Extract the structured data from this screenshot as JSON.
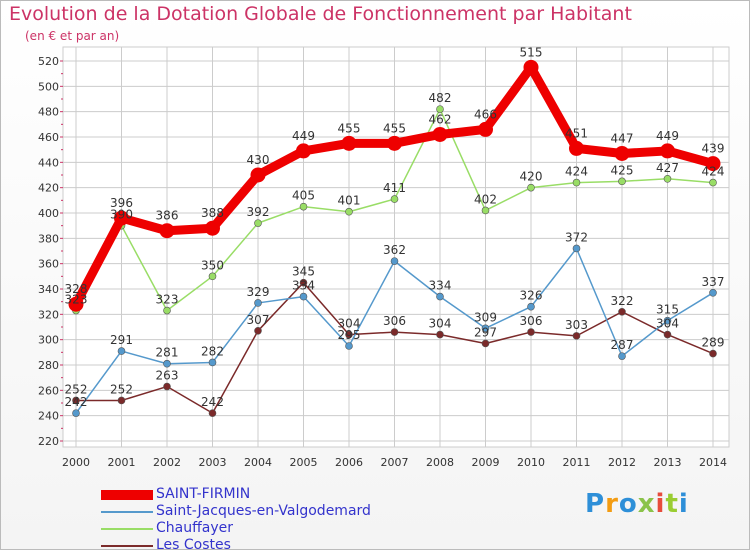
{
  "header": {
    "title": "Evolution de la Dotation Globale de Fonctionnement par Habitant",
    "subtitle": "(en € et par an)"
  },
  "brand": {
    "text": "Proxiti",
    "colors": [
      "#2e8fd8",
      "#f39c12",
      "#2e8fd8",
      "#8bc34a",
      "#e74c3c",
      "#9acd32",
      "#2e8fd8"
    ]
  },
  "chart_data": {
    "type": "line",
    "categories": [
      "2000",
      "2001",
      "2002",
      "2003",
      "2004",
      "2005",
      "2006",
      "2007",
      "2008",
      "2009",
      "2010",
      "2011",
      "2012",
      "2013",
      "2014"
    ],
    "ylim": [
      220,
      520
    ],
    "yticks": [
      "220",
      "240",
      "260",
      "280",
      "300",
      "320",
      "340",
      "360",
      "380",
      "400",
      "420",
      "440",
      "460",
      "480",
      "500",
      "520"
    ],
    "grid": true,
    "legend_position": "bottom-left",
    "series": [
      {
        "name": "Les Costes",
        "color": "#7b2a2a",
        "values": [
          252,
          252,
          263,
          242,
          307,
          345,
          304,
          306,
          304,
          297,
          306,
          303,
          322,
          304,
          289
        ],
        "labels": [
          "252",
          "252",
          "263",
          "242",
          "307",
          "345",
          "304",
          "306",
          "304",
          "297",
          "306",
          "303",
          "322",
          "304",
          "289"
        ]
      },
      {
        "name": "Chauffayer",
        "color": "#99dd66",
        "values": [
          323,
          390,
          323,
          350,
          392,
          405,
          401,
          411,
          482,
          402,
          420,
          424,
          425,
          427,
          424
        ],
        "labels": [
          "323",
          "390",
          "323",
          "350",
          "392",
          "405",
          "401",
          "411",
          "482",
          "402",
          "420",
          "424",
          "425",
          "427",
          "424"
        ]
      },
      {
        "name": "Saint-Jacques-en-Valgodemard",
        "color": "#5599cc",
        "values": [
          242,
          291,
          281,
          282,
          329,
          334,
          295,
          362,
          334,
          309,
          326,
          372,
          287,
          315,
          337
        ],
        "labels": [
          "242",
          "291",
          "281",
          "282",
          "329",
          "334",
          "295",
          "362",
          "334",
          "309",
          "326",
          "372",
          "287",
          "315",
          "337"
        ]
      },
      {
        "name": "SAINT-FIRMIN",
        "color": "#ee0000",
        "values": [
          328,
          396,
          386,
          388,
          430,
          449,
          455,
          455,
          462,
          466,
          515,
          451,
          447,
          449,
          439
        ],
        "labels": [
          "328",
          "396",
          "386",
          "388",
          "430",
          "449",
          "455",
          "455",
          "462",
          "466",
          "515",
          "451",
          "447",
          "449",
          "439"
        ]
      }
    ]
  },
  "legend": {
    "items": [
      {
        "name": "SAINT-FIRMIN",
        "color": "#ee0000",
        "thickness": 10
      },
      {
        "name": "Saint-Jacques-en-Valgodemard",
        "color": "#5599cc",
        "thickness": 2
      },
      {
        "name": "Chauffayer",
        "color": "#99dd66",
        "thickness": 2
      },
      {
        "name": "Les Costes",
        "color": "#7b2a2a",
        "thickness": 2
      }
    ]
  }
}
